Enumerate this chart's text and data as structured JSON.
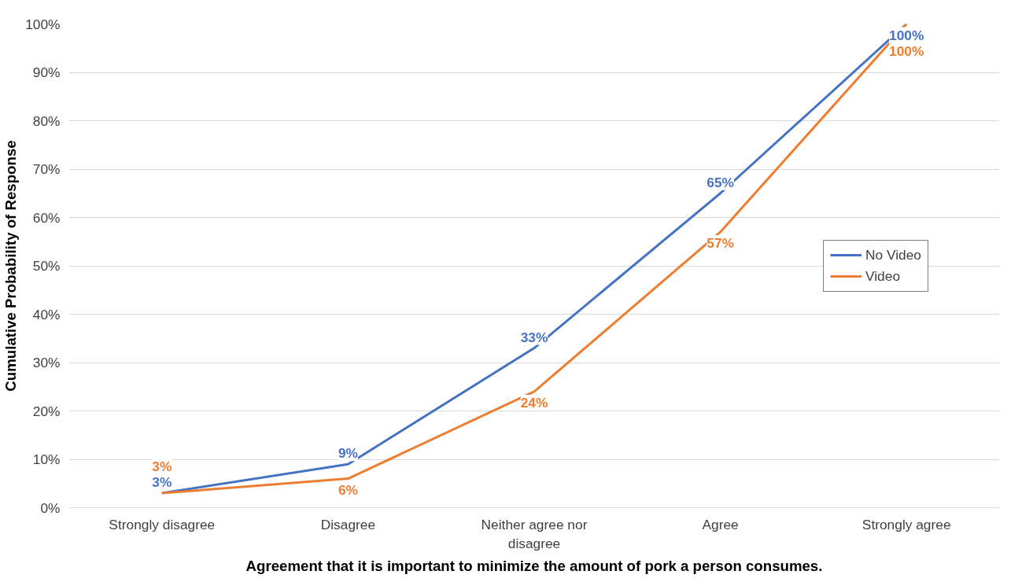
{
  "chart_data": {
    "type": "line",
    "xlabel": "Agreement that it is important to minimize the amount of pork a person consumes.",
    "ylabel": "Cumulative Probability of Response",
    "categories": [
      "Strongly disagree",
      "Disagree",
      "Neither agree nor disagree",
      "Agree",
      "Strongly agree"
    ],
    "series": [
      {
        "name": "No Video",
        "color": "#4472c4",
        "values": [
          3,
          9,
          33,
          65,
          100
        ],
        "value_labels": [
          "3%",
          "9%",
          "33%",
          "65%",
          "100%"
        ]
      },
      {
        "name": "Video",
        "color": "#ed7d31",
        "values": [
          3,
          6,
          24,
          57,
          100
        ],
        "value_labels": [
          "3%",
          "6%",
          "24%",
          "57%",
          "100%"
        ]
      }
    ],
    "ylim": [
      0,
      100
    ],
    "yticks": [
      {
        "value": 0,
        "label": "0%"
      },
      {
        "value": 10,
        "label": "10%"
      },
      {
        "value": 20,
        "label": "20%"
      },
      {
        "value": 30,
        "label": "30%"
      },
      {
        "value": 40,
        "label": "40%"
      },
      {
        "value": 50,
        "label": "50%"
      },
      {
        "value": 60,
        "label": "60%"
      },
      {
        "value": 70,
        "label": "70%"
      },
      {
        "value": 80,
        "label": "80%"
      },
      {
        "value": 90,
        "label": "90%"
      },
      {
        "value": 100,
        "label": "100%"
      }
    ],
    "grid": "y",
    "legend": "right",
    "marker": "none",
    "line_style": "solid"
  }
}
